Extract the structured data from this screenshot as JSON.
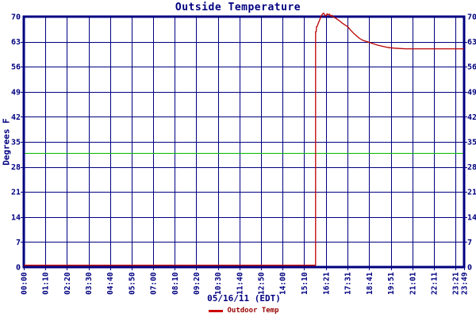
{
  "colors": {
    "background": "#ffffff",
    "axis": "#000080",
    "grid": "#000080",
    "curve": "#bb0000",
    "legend_dash": "#cc0000",
    "legend_text": "#990000",
    "reference": "#00bb00"
  },
  "chart_data": {
    "type": "line",
    "title": "Outside Temperature",
    "xlabel": "05/16/11 (EDT)",
    "ylabel": "Degrees F",
    "xlim": [
      0,
      1429
    ],
    "ylim": [
      0,
      70
    ],
    "grid": true,
    "y_ticks": [
      0,
      7,
      14,
      21,
      28,
      35,
      42,
      49,
      56,
      63,
      70
    ],
    "x_ticks": [
      {
        "label": "00:00",
        "minutes": 0
      },
      {
        "label": "01:10",
        "minutes": 70
      },
      {
        "label": "02:20",
        "minutes": 140
      },
      {
        "label": "03:30",
        "minutes": 210
      },
      {
        "label": "04:40",
        "minutes": 280
      },
      {
        "label": "05:50",
        "minutes": 350
      },
      {
        "label": "07:00",
        "minutes": 420
      },
      {
        "label": "08:10",
        "minutes": 490
      },
      {
        "label": "09:20",
        "minutes": 560
      },
      {
        "label": "10:30",
        "minutes": 630
      },
      {
        "label": "11:40",
        "minutes": 700
      },
      {
        "label": "12:50",
        "minutes": 770
      },
      {
        "label": "14:00",
        "minutes": 840
      },
      {
        "label": "15:10",
        "minutes": 910
      },
      {
        "label": "16:21",
        "minutes": 981
      },
      {
        "label": "17:31",
        "minutes": 1051
      },
      {
        "label": "18:41",
        "minutes": 1121
      },
      {
        "label": "19:51",
        "minutes": 1191
      },
      {
        "label": "21:01",
        "minutes": 1261
      },
      {
        "label": "22:11",
        "minutes": 1331
      },
      {
        "label": "23:21",
        "minutes": 1401
      },
      {
        "label": "23:49",
        "minutes": 1429
      }
    ],
    "reference_line": {
      "name": "freezing-line",
      "value": 32
    },
    "legend": {
      "position": "bottom",
      "entries": [
        {
          "label": "Outdoor Temp",
          "color": "#cc0000"
        }
      ]
    },
    "series": [
      {
        "name": "Outdoor Temp",
        "points": [
          [
            0,
            0.5
          ],
          [
            940,
            0.5
          ],
          [
            947,
            0.5
          ],
          [
            947,
            65.8
          ],
          [
            949,
            65.8
          ],
          [
            950,
            67.2
          ],
          [
            952,
            67.2
          ],
          [
            955,
            68.0
          ],
          [
            958,
            68.6
          ],
          [
            962,
            69.5
          ],
          [
            966,
            70.3
          ],
          [
            970,
            70.8
          ],
          [
            973,
            71.0
          ],
          [
            977,
            70.4
          ],
          [
            981,
            70.2
          ],
          [
            984,
            70.8
          ],
          [
            988,
            70.5
          ],
          [
            992,
            70.7
          ],
          [
            996,
            70.1
          ],
          [
            1000,
            70.4
          ],
          [
            1005,
            69.9
          ],
          [
            1012,
            69.6
          ],
          [
            1018,
            69.2
          ],
          [
            1025,
            68.8
          ],
          [
            1032,
            68.3
          ],
          [
            1040,
            67.8
          ],
          [
            1051,
            67.2
          ],
          [
            1060,
            66.3
          ],
          [
            1070,
            65.4
          ],
          [
            1080,
            64.6
          ],
          [
            1090,
            63.9
          ],
          [
            1100,
            63.4
          ],
          [
            1110,
            63.1
          ],
          [
            1121,
            62.8
          ],
          [
            1135,
            62.4
          ],
          [
            1150,
            62.0
          ],
          [
            1165,
            61.7
          ],
          [
            1180,
            61.4
          ],
          [
            1200,
            61.2
          ],
          [
            1220,
            61.1
          ],
          [
            1240,
            61.0
          ],
          [
            1429,
            61.0
          ]
        ]
      }
    ]
  }
}
